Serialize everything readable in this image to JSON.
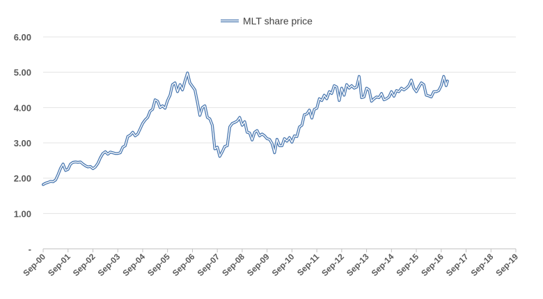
{
  "chart_data": {
    "type": "line",
    "title": "",
    "xlabel": "",
    "ylabel": "",
    "legend": {
      "position": "top",
      "label": "MLT  share price"
    },
    "grid": {
      "horizontal": true,
      "vertical": false
    },
    "ylim": [
      0,
      6
    ],
    "yticks": [
      {
        "value": 0,
        "label": "-"
      },
      {
        "value": 1,
        "label": "1.00"
      },
      {
        "value": 2,
        "label": "2.00"
      },
      {
        "value": 3,
        "label": "3.00"
      },
      {
        "value": 4,
        "label": "4.00"
      },
      {
        "value": 5,
        "label": "5.00"
      },
      {
        "value": 6,
        "label": "6.00"
      }
    ],
    "xticks": [
      "Sep-00",
      "Sep-01",
      "Sep-02",
      "Sep-03",
      "Sep-04",
      "Sep-05",
      "Sep-06",
      "Sep-07",
      "Sep-08",
      "Sep-09",
      "Sep-10",
      "Sep-11",
      "Sep-12",
      "Sep-13",
      "Sep-14",
      "Sep-15",
      "Sep-16",
      "Sep-17",
      "Sep-18",
      "Sep-19"
    ],
    "colors": {
      "line_outer": "#4a78b0",
      "line_inner": "#ffffff",
      "grid": "#e3e3e3",
      "axis": "#bfbfbf"
    },
    "series": [
      {
        "name": "MLT  share price",
        "x_unit": "years since Sep-00",
        "points": [
          [
            0.0,
            1.82
          ],
          [
            0.1,
            1.86
          ],
          [
            0.2,
            1.88
          ],
          [
            0.3,
            1.91
          ],
          [
            0.4,
            1.9
          ],
          [
            0.5,
            1.95
          ],
          [
            0.6,
            2.1
          ],
          [
            0.7,
            2.28
          ],
          [
            0.8,
            2.4
          ],
          [
            0.9,
            2.22
          ],
          [
            1.0,
            2.25
          ],
          [
            1.1,
            2.4
          ],
          [
            1.2,
            2.45
          ],
          [
            1.3,
            2.46
          ],
          [
            1.4,
            2.45
          ],
          [
            1.5,
            2.46
          ],
          [
            1.6,
            2.4
          ],
          [
            1.7,
            2.35
          ],
          [
            1.8,
            2.32
          ],
          [
            1.9,
            2.33
          ],
          [
            2.0,
            2.27
          ],
          [
            2.1,
            2.32
          ],
          [
            2.2,
            2.42
          ],
          [
            2.3,
            2.58
          ],
          [
            2.4,
            2.7
          ],
          [
            2.5,
            2.75
          ],
          [
            2.6,
            2.68
          ],
          [
            2.7,
            2.74
          ],
          [
            2.8,
            2.72
          ],
          [
            2.9,
            2.7
          ],
          [
            3.0,
            2.7
          ],
          [
            3.1,
            2.72
          ],
          [
            3.2,
            2.88
          ],
          [
            3.3,
            2.92
          ],
          [
            3.4,
            3.18
          ],
          [
            3.5,
            3.22
          ],
          [
            3.6,
            3.3
          ],
          [
            3.7,
            3.2
          ],
          [
            3.8,
            3.25
          ],
          [
            3.9,
            3.4
          ],
          [
            4.0,
            3.55
          ],
          [
            4.1,
            3.65
          ],
          [
            4.2,
            3.72
          ],
          [
            4.3,
            3.9
          ],
          [
            4.4,
            3.95
          ],
          [
            4.5,
            4.22
          ],
          [
            4.6,
            4.18
          ],
          [
            4.7,
            4.0
          ],
          [
            4.8,
            4.05
          ],
          [
            4.9,
            3.98
          ],
          [
            5.0,
            4.2
          ],
          [
            5.1,
            4.35
          ],
          [
            5.2,
            4.65
          ],
          [
            5.3,
            4.7
          ],
          [
            5.4,
            4.45
          ],
          [
            5.5,
            4.65
          ],
          [
            5.6,
            4.5
          ],
          [
            5.7,
            4.75
          ],
          [
            5.8,
            4.98
          ],
          [
            5.9,
            4.7
          ],
          [
            6.0,
            4.6
          ],
          [
            6.1,
            4.5
          ],
          [
            6.2,
            4.15
          ],
          [
            6.3,
            3.78
          ],
          [
            6.4,
            4.0
          ],
          [
            6.5,
            4.05
          ],
          [
            6.6,
            3.72
          ],
          [
            6.7,
            3.68
          ],
          [
            6.8,
            3.5
          ],
          [
            6.9,
            2.83
          ],
          [
            7.0,
            2.88
          ],
          [
            7.1,
            2.62
          ],
          [
            7.2,
            2.75
          ],
          [
            7.3,
            2.9
          ],
          [
            7.4,
            2.92
          ],
          [
            7.5,
            3.45
          ],
          [
            7.6,
            3.55
          ],
          [
            7.7,
            3.58
          ],
          [
            7.8,
            3.62
          ],
          [
            7.9,
            3.72
          ],
          [
            8.0,
            3.5
          ],
          [
            8.1,
            3.6
          ],
          [
            8.2,
            3.3
          ],
          [
            8.3,
            3.28
          ],
          [
            8.4,
            3.08
          ],
          [
            8.5,
            3.3
          ],
          [
            8.6,
            3.35
          ],
          [
            8.7,
            3.2
          ],
          [
            8.8,
            3.25
          ],
          [
            8.9,
            3.2
          ],
          [
            9.0,
            3.12
          ],
          [
            9.1,
            3.1
          ],
          [
            9.2,
            2.98
          ],
          [
            9.3,
            2.72
          ],
          [
            9.4,
            3.1
          ],
          [
            9.5,
            2.92
          ],
          [
            9.6,
            2.92
          ],
          [
            9.7,
            3.12
          ],
          [
            9.8,
            3.05
          ],
          [
            9.9,
            3.15
          ],
          [
            10.0,
            3.02
          ],
          [
            10.1,
            3.2
          ],
          [
            10.2,
            3.18
          ],
          [
            10.3,
            3.45
          ],
          [
            10.4,
            3.5
          ],
          [
            10.5,
            3.8
          ],
          [
            10.6,
            3.82
          ],
          [
            10.7,
            3.93
          ],
          [
            10.8,
            3.7
          ],
          [
            10.9,
            3.95
          ],
          [
            11.0,
            3.98
          ],
          [
            11.1,
            4.25
          ],
          [
            11.2,
            4.2
          ],
          [
            11.3,
            4.35
          ],
          [
            11.4,
            4.25
          ],
          [
            11.5,
            4.45
          ],
          [
            11.6,
            4.4
          ],
          [
            11.7,
            4.62
          ],
          [
            11.8,
            4.58
          ],
          [
            11.9,
            4.2
          ],
          [
            12.0,
            4.55
          ],
          [
            12.1,
            4.35
          ],
          [
            12.2,
            4.65
          ],
          [
            12.3,
            4.55
          ],
          [
            12.4,
            4.62
          ],
          [
            12.5,
            4.55
          ],
          [
            12.6,
            4.58
          ],
          [
            12.7,
            4.88
          ],
          [
            12.8,
            4.28
          ],
          [
            12.9,
            4.3
          ],
          [
            13.0,
            4.55
          ],
          [
            13.1,
            4.5
          ],
          [
            13.2,
            4.18
          ],
          [
            13.3,
            4.25
          ],
          [
            13.4,
            4.3
          ],
          [
            13.5,
            4.28
          ],
          [
            13.6,
            4.4
          ],
          [
            13.7,
            4.22
          ],
          [
            13.8,
            4.25
          ],
          [
            13.9,
            4.3
          ],
          [
            14.0,
            4.45
          ],
          [
            14.1,
            4.32
          ],
          [
            14.2,
            4.48
          ],
          [
            14.3,
            4.45
          ],
          [
            14.4,
            4.55
          ],
          [
            14.5,
            4.5
          ],
          [
            14.6,
            4.55
          ],
          [
            14.7,
            4.62
          ],
          [
            14.8,
            4.78
          ],
          [
            14.9,
            4.55
          ],
          [
            15.0,
            4.45
          ],
          [
            15.1,
            4.58
          ],
          [
            15.2,
            4.7
          ],
          [
            15.3,
            4.65
          ],
          [
            15.4,
            4.35
          ],
          [
            15.5,
            4.33
          ],
          [
            15.6,
            4.3
          ],
          [
            15.7,
            4.45
          ],
          [
            15.8,
            4.45
          ],
          [
            15.9,
            4.48
          ],
          [
            16.0,
            4.62
          ],
          [
            16.1,
            4.88
          ],
          [
            16.2,
            4.62
          ],
          [
            16.25,
            4.75
          ]
        ]
      }
    ]
  }
}
